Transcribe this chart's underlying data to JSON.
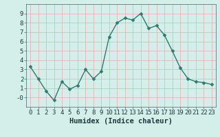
{
  "x": [
    0,
    1,
    2,
    3,
    4,
    5,
    6,
    7,
    8,
    9,
    10,
    11,
    12,
    13,
    14,
    15,
    16,
    17,
    18,
    19,
    20,
    21,
    22,
    23
  ],
  "y": [
    3.3,
    2.0,
    0.7,
    -0.3,
    1.7,
    0.9,
    1.3,
    3.0,
    2.0,
    2.8,
    6.5,
    8.0,
    8.5,
    8.3,
    9.0,
    7.4,
    7.7,
    6.7,
    5.0,
    3.2,
    2.0,
    1.7,
    1.6,
    1.4
  ],
  "line_color": "#2d7a6e",
  "marker": "D",
  "marker_size": 2.5,
  "bg_color": "#d4eeea",
  "plot_bg_color": "#d4eeea",
  "grid_color": "#e8b4b8",
  "xlabel": "Humidex (Indice chaleur)",
  "xlim": [
    -0.5,
    23.5
  ],
  "ylim": [
    -1.0,
    10.0
  ],
  "yticks": [
    0,
    1,
    2,
    3,
    4,
    5,
    6,
    7,
    8,
    9
  ],
  "ytick_labels": [
    "-0",
    "1",
    "2",
    "3",
    "4",
    "5",
    "6",
    "7",
    "8",
    "9"
  ],
  "xtick_labels": [
    "0",
    "1",
    "2",
    "3",
    "4",
    "5",
    "6",
    "7",
    "8",
    "9",
    "10",
    "11",
    "12",
    "13",
    "14",
    "15",
    "16",
    "17",
    "18",
    "19",
    "20",
    "21",
    "22",
    "23"
  ],
  "font_size": 6.5,
  "xlabel_fontsize": 7.5
}
